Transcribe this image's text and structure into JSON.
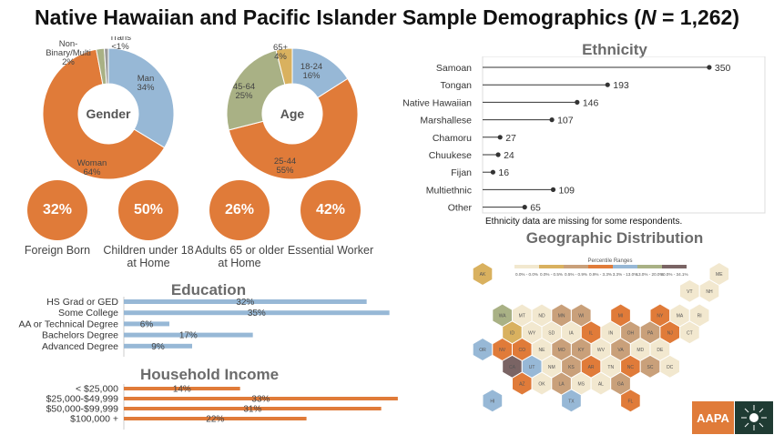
{
  "title_pre": "Native Hawaiian and Pacific Islander Sample Demographics (",
  "title_n": "N",
  "title_post": " = 1,262)",
  "colors": {
    "orange": "#e07b39",
    "blue": "#97b8d6",
    "gold": "#d9b15f",
    "sage": "#a9b185",
    "gray": "#999999",
    "hex_empty": "#f2e8cf"
  },
  "gender": {
    "center": "Gender",
    "slices": [
      {
        "name": "Man",
        "pct": 34,
        "label": "34%",
        "color": "#97b8d6"
      },
      {
        "name": "Woman",
        "pct": 64,
        "label": "64%",
        "color": "#e07b39"
      },
      {
        "name": "Non-Binary/Multi",
        "pct": 2,
        "label": "2%",
        "color": "#a9b185"
      },
      {
        "name": "Trans",
        "pct": 1,
        "label": "<1%",
        "color": "#999999"
      }
    ]
  },
  "age": {
    "center": "Age",
    "slices": [
      {
        "name": "18-24",
        "pct": 16,
        "label": "16%",
        "color": "#97b8d6"
      },
      {
        "name": "25-44",
        "pct": 55,
        "label": "55%",
        "color": "#e07b39"
      },
      {
        "name": "45-64",
        "pct": 25,
        "label": "25%",
        "color": "#a9b185"
      },
      {
        "name": "65+",
        "pct": 4,
        "label": "4%",
        "color": "#d9b15f"
      }
    ]
  },
  "stats": [
    {
      "value": "32%",
      "label": "Foreign Born"
    },
    {
      "value": "50%",
      "label": "Children under 18 at Home"
    },
    {
      "value": "26%",
      "label": "Adults 65 or older at Home"
    },
    {
      "value": "42%",
      "label": "Essential Worker"
    }
  ],
  "education": {
    "title": "Education",
    "categories": [
      "HS Grad or GED",
      "Some College",
      "AA or Technical Degree",
      "Bachelors Degree",
      "Advanced Degree"
    ],
    "values": [
      32,
      35,
      6,
      17,
      9
    ],
    "labels": [
      "32%",
      "35%",
      "6%",
      "17%",
      "9%"
    ],
    "xlim": [
      0,
      36
    ]
  },
  "income": {
    "title": "Household Income",
    "categories": [
      "< $25,000",
      "$25,000-$49,999",
      "$50,000-$99,999",
      "$100,000 +"
    ],
    "values": [
      14,
      33,
      31,
      22
    ],
    "labels": [
      "14%",
      "33%",
      "31%",
      "22%"
    ],
    "xlim": [
      0,
      34
    ]
  },
  "ethnicity": {
    "title": "Ethnicity",
    "categories": [
      "Samoan",
      "Tongan",
      "Native Hawaiian",
      "Marshallese",
      "Chamoru",
      "Chuukese",
      "Fijan",
      "Multiethnic",
      "Other"
    ],
    "values": [
      350,
      193,
      146,
      107,
      27,
      24,
      16,
      109,
      65
    ],
    "xlim": [
      0,
      360
    ],
    "note": "Ethnicity data are missing for some respondents."
  },
  "geo": {
    "title": "Geographic Distribution",
    "legend_title": "Percentile Ranges",
    "legend": [
      {
        "label": "0.0% - 0.0%",
        "color": "#f2e8cf"
      },
      {
        "label": "0.0% - 0.5%",
        "color": "#d9b15f"
      },
      {
        "label": "0.5% - 0.9%",
        "color": "#c9a07a"
      },
      {
        "label": "0.9% - 3.3%",
        "color": "#e07b39"
      },
      {
        "label": "3.3% - 13.0%",
        "color": "#97b8d6"
      },
      {
        "label": "13.0% - 20.0%",
        "color": "#a9b185"
      },
      {
        "label": "20.0% - 34.1%",
        "color": "#7a6464"
      }
    ],
    "states": [
      {
        "code": "AK",
        "row": 0,
        "col": 0,
        "cat": 1
      },
      {
        "code": "ME",
        "row": 0,
        "col": 12,
        "cat": 0
      },
      {
        "code": "VT",
        "row": 1,
        "col": 10,
        "cat": 0
      },
      {
        "code": "NH",
        "row": 1,
        "col": 11,
        "cat": 0
      },
      {
        "code": "WA",
        "row": 2,
        "col": 1,
        "cat": 5
      },
      {
        "code": "MT",
        "row": 2,
        "col": 2,
        "cat": 0
      },
      {
        "code": "ND",
        "row": 2,
        "col": 3,
        "cat": 0
      },
      {
        "code": "MN",
        "row": 2,
        "col": 4,
        "cat": 2
      },
      {
        "code": "WI",
        "row": 2,
        "col": 5,
        "cat": 2
      },
      {
        "code": "MI",
        "row": 2,
        "col": 7,
        "cat": 3
      },
      {
        "code": "NY",
        "row": 2,
        "col": 9,
        "cat": 3
      },
      {
        "code": "MA",
        "row": 2,
        "col": 10,
        "cat": 0
      },
      {
        "code": "RI",
        "row": 2,
        "col": 11,
        "cat": 0
      },
      {
        "code": "ID",
        "row": 3,
        "col": 1,
        "cat": 1
      },
      {
        "code": "WY",
        "row": 3,
        "col": 2,
        "cat": 0
      },
      {
        "code": "SD",
        "row": 3,
        "col": 3,
        "cat": 0
      },
      {
        "code": "IA",
        "row": 3,
        "col": 4,
        "cat": 0
      },
      {
        "code": "IL",
        "row": 3,
        "col": 5,
        "cat": 3
      },
      {
        "code": "IN",
        "row": 3,
        "col": 6,
        "cat": 0
      },
      {
        "code": "OH",
        "row": 3,
        "col": 7,
        "cat": 2
      },
      {
        "code": "PA",
        "row": 3,
        "col": 8,
        "cat": 2
      },
      {
        "code": "NJ",
        "row": 3,
        "col": 9,
        "cat": 3
      },
      {
        "code": "CT",
        "row": 3,
        "col": 10,
        "cat": 0
      },
      {
        "code": "OR",
        "row": 4,
        "col": 0,
        "cat": 4
      },
      {
        "code": "NV",
        "row": 4,
        "col": 1,
        "cat": 3
      },
      {
        "code": "CO",
        "row": 4,
        "col": 2,
        "cat": 3
      },
      {
        "code": "NE",
        "row": 4,
        "col": 3,
        "cat": 0
      },
      {
        "code": "MO",
        "row": 4,
        "col": 4,
        "cat": 2
      },
      {
        "code": "KY",
        "row": 4,
        "col": 5,
        "cat": 2
      },
      {
        "code": "WV",
        "row": 4,
        "col": 6,
        "cat": 0
      },
      {
        "code": "VA",
        "row": 4,
        "col": 7,
        "cat": 2
      },
      {
        "code": "MD",
        "row": 4,
        "col": 8,
        "cat": 0
      },
      {
        "code": "DE",
        "row": 4,
        "col": 9,
        "cat": 0
      },
      {
        "code": "CA",
        "row": 5,
        "col": 1,
        "cat": 6
      },
      {
        "code": "UT",
        "row": 5,
        "col": 2,
        "cat": 4
      },
      {
        "code": "NM",
        "row": 5,
        "col": 3,
        "cat": 0
      },
      {
        "code": "KS",
        "row": 5,
        "col": 4,
        "cat": 2
      },
      {
        "code": "AR",
        "row": 5,
        "col": 5,
        "cat": 3
      },
      {
        "code": "TN",
        "row": 5,
        "col": 6,
        "cat": 0
      },
      {
        "code": "NC",
        "row": 5,
        "col": 7,
        "cat": 3
      },
      {
        "code": "SC",
        "row": 5,
        "col": 8,
        "cat": 2
      },
      {
        "code": "DC",
        "row": 5,
        "col": 9,
        "cat": 0
      },
      {
        "code": "AZ",
        "row": 6,
        "col": 2,
        "cat": 3
      },
      {
        "code": "OK",
        "row": 6,
        "col": 3,
        "cat": 0
      },
      {
        "code": "LA",
        "row": 6,
        "col": 4,
        "cat": 2
      },
      {
        "code": "MS",
        "row": 6,
        "col": 5,
        "cat": 0
      },
      {
        "code": "AL",
        "row": 6,
        "col": 6,
        "cat": 0
      },
      {
        "code": "GA",
        "row": 6,
        "col": 7,
        "cat": 2
      },
      {
        "code": "HI",
        "row": 7,
        "col": 0,
        "cat": 4
      },
      {
        "code": "TX",
        "row": 7,
        "col": 4,
        "cat": 4
      },
      {
        "code": "FL",
        "row": 7,
        "col": 7,
        "cat": 3
      }
    ]
  },
  "logo": "AAPA"
}
